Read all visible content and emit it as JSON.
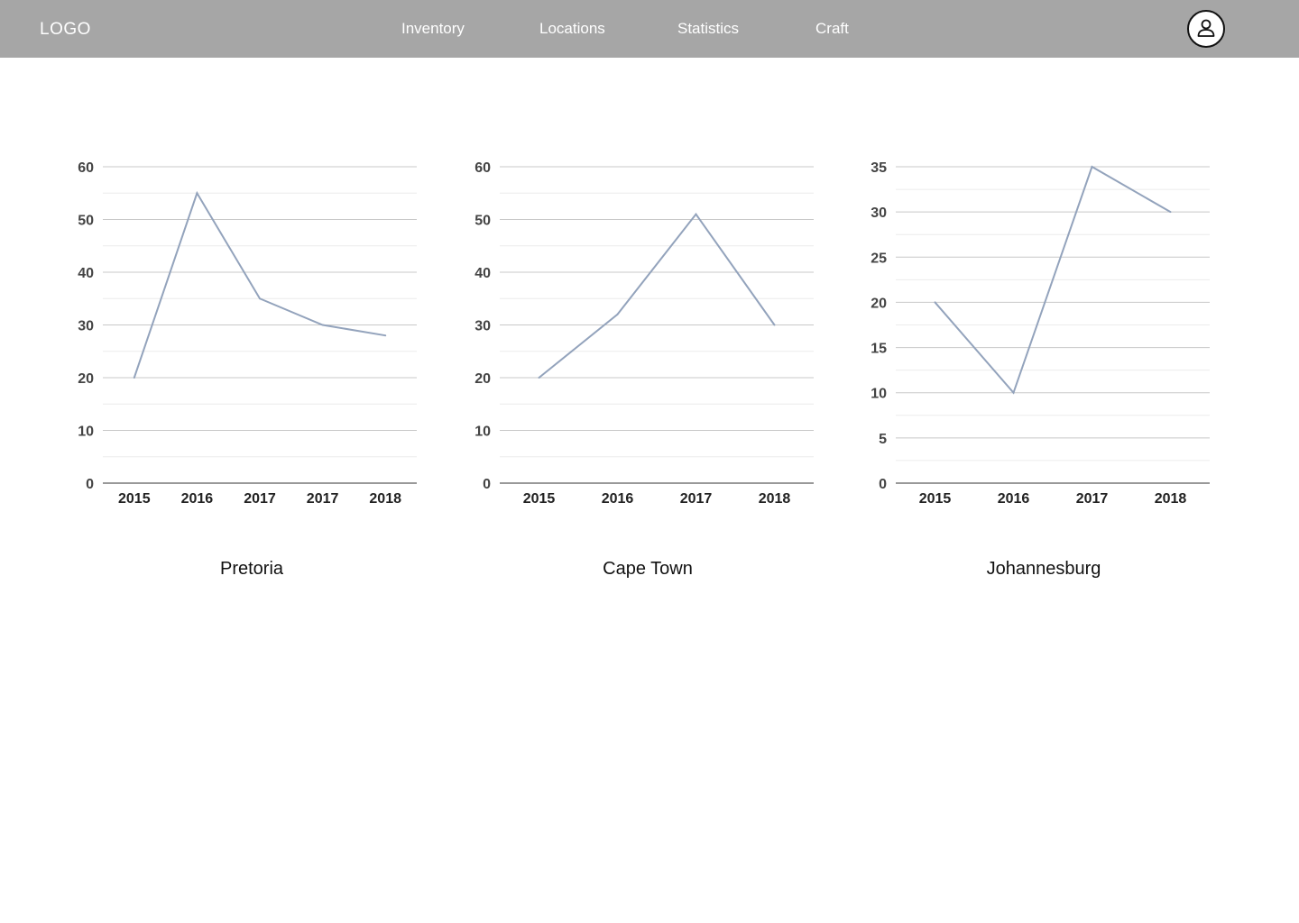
{
  "navbar": {
    "logo": "LOGO",
    "items": [
      {
        "label": "Inventory"
      },
      {
        "label": "Locations"
      },
      {
        "label": "Statistics"
      },
      {
        "label": "Craft"
      }
    ],
    "avatar_icon": "user-icon",
    "background": "#a6a6a6"
  },
  "chart_data": [
    {
      "type": "line",
      "title": "Pretoria",
      "categories": [
        "2015",
        "2016",
        "2017",
        "2017",
        "2018"
      ],
      "values": [
        20,
        55,
        35,
        30,
        28
      ],
      "ylim": [
        0,
        60
      ],
      "yticks": [
        0,
        10,
        20,
        30,
        40,
        50,
        60
      ],
      "grid": true,
      "line_color": "#93a3bc"
    },
    {
      "type": "line",
      "title": "Cape Town",
      "categories": [
        "2015",
        "2016",
        "2017",
        "2018"
      ],
      "values": [
        20,
        32,
        51,
        30
      ],
      "ylim": [
        0,
        60
      ],
      "yticks": [
        0,
        10,
        20,
        30,
        40,
        50,
        60
      ],
      "grid": true,
      "line_color": "#93a3bc"
    },
    {
      "type": "line",
      "title": "Johannesburg",
      "categories": [
        "2015",
        "2016",
        "2017",
        "2018"
      ],
      "values": [
        20,
        10,
        35,
        30
      ],
      "ylim": [
        0,
        35
      ],
      "yticks": [
        0,
        5,
        10,
        15,
        20,
        25,
        30,
        35
      ],
      "grid": true,
      "line_color": "#93a3bc"
    }
  ]
}
